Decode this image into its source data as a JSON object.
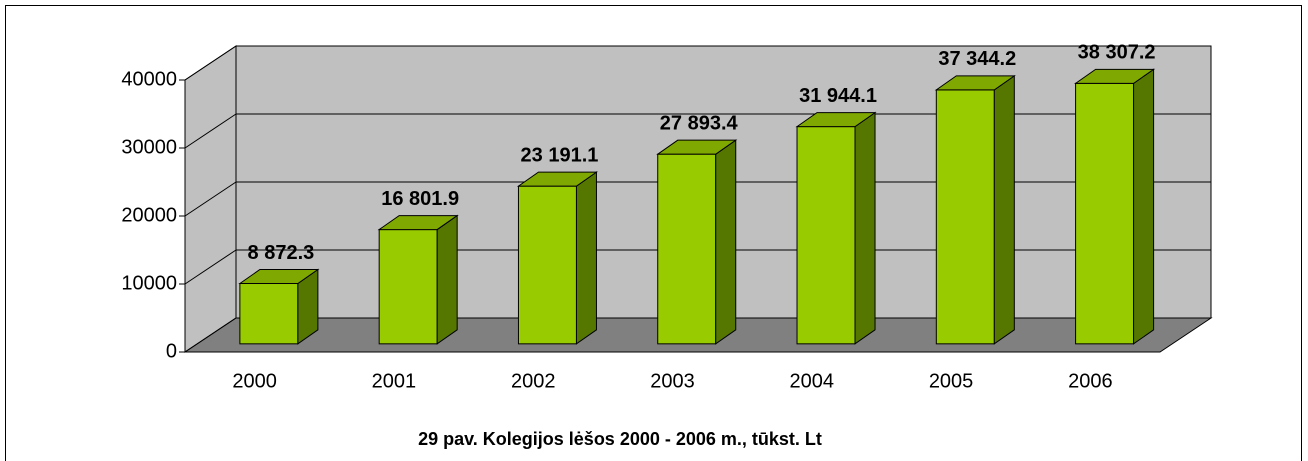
{
  "chart_data": {
    "type": "bar3d",
    "title": "29 pav. Kolegijos lėšos 2000 - 2006 m., tūkst. Lt",
    "categories": [
      "2000",
      "2001",
      "2002",
      "2003",
      "2004",
      "2005",
      "2006"
    ],
    "values": [
      8872.3,
      16801.9,
      23191.1,
      27893.4,
      31944.1,
      37344.2,
      38307.2
    ],
    "value_labels": [
      "8 872.3",
      "16 801.9",
      "23 191.1",
      "27 893.4",
      "31 944.1",
      "37 344.2",
      "38 307.2"
    ],
    "color": "#99cc00",
    "ylim": [
      0,
      40000
    ],
    "yticks": [
      0,
      10000,
      20000,
      30000,
      40000
    ],
    "grid": true
  }
}
